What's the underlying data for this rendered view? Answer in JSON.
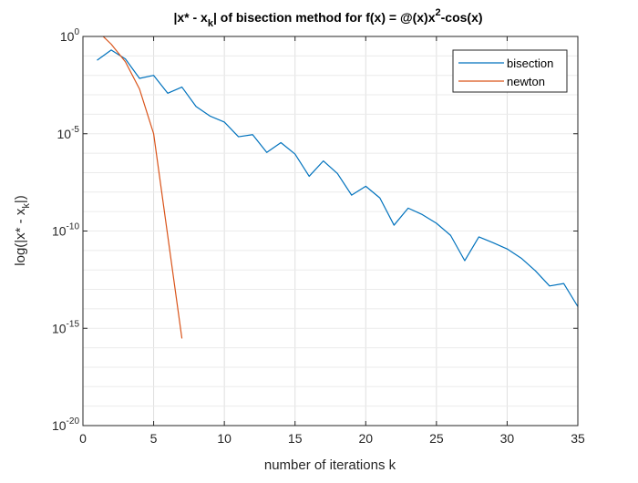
{
  "chart_data": {
    "type": "line",
    "title": "|x* - x_k| of bisection method for f(x) = @(x)x^2-cos(x)",
    "title_parts": {
      "a": "|x* - x",
      "a_sub": "k",
      "b": "| of bisection method for f(x) = @(x)x",
      "b_sup": "2",
      "c": "-cos(x)"
    },
    "xlabel": "number of iterations k",
    "ylabel_parts": {
      "a": "log(|x* - x",
      "sub": "k",
      "b": "|)"
    },
    "xlim": [
      0,
      35
    ],
    "ylim": [
      1e-20,
      1
    ],
    "yscale": "log",
    "grid": true,
    "legend_position": "top-right",
    "x_ticks": [
      "0",
      "5",
      "10",
      "15",
      "20",
      "25",
      "30",
      "35"
    ],
    "y_ticks": [
      {
        "base": "10",
        "exp": "0"
      },
      {
        "base": "10",
        "exp": "-5"
      },
      {
        "base": "10",
        "exp": "-10"
      },
      {
        "base": "10",
        "exp": "-15"
      },
      {
        "base": "10",
        "exp": "-20"
      }
    ],
    "series": [
      {
        "name": "bisection",
        "color": "#0072bd",
        "x": [
          1,
          2,
          3,
          4,
          5,
          6,
          7,
          8,
          9,
          10,
          11,
          12,
          13,
          14,
          15,
          16,
          17,
          18,
          19,
          20,
          21,
          22,
          23,
          24,
          25,
          26,
          27,
          28,
          29,
          30,
          31,
          32,
          33,
          34,
          35
        ],
        "y": [
          0.06,
          0.2,
          0.07,
          0.007,
          0.01,
          0.0012,
          0.0025,
          0.00025,
          8e-05,
          4e-05,
          7e-06,
          9e-06,
          1.1e-06,
          3.5e-06,
          9e-07,
          6.5e-08,
          4e-07,
          9e-08,
          7e-09,
          2e-08,
          5e-09,
          2e-10,
          1.5e-09,
          7e-10,
          2.5e-10,
          6e-11,
          3e-12,
          5e-11,
          2.5e-11,
          1.2e-11,
          4e-12,
          9e-13,
          1.5e-13,
          2e-13,
          1.3e-14
        ]
      },
      {
        "name": "newton",
        "color": "#d95319",
        "x": [
          1,
          2,
          3,
          4,
          5,
          7
        ],
        "y": [
          2,
          0.4,
          0.05,
          0.002,
          1e-05,
          3e-16
        ]
      }
    ]
  }
}
